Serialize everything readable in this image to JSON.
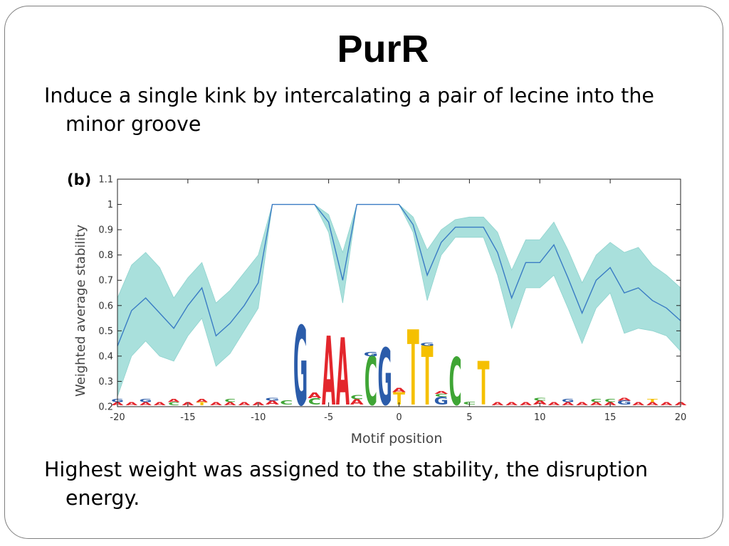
{
  "slide": {
    "title": "PurR",
    "bullets": [
      "Induce a single kink by intercalating a pair of lecine into the minor groove",
      "Highest weight was assigned to the stability, the disruption energy."
    ]
  },
  "colors": {
    "line": "#3a7cc4",
    "band": "#a9e0dc",
    "band_edge": "#8fd3ce",
    "logo_A": "#e3262c",
    "logo_C": "#3fa535",
    "logo_G": "#2b5caa",
    "logo_T": "#f5c000"
  },
  "chart_data": {
    "type": "line",
    "panel_label": "(b)",
    "xlabel": "Motif position",
    "ylabel": "Weighted average stability",
    "xlim": [
      -20,
      20
    ],
    "ylim": [
      0.2,
      1.1
    ],
    "xticks": [
      -20,
      -15,
      -10,
      -5,
      0,
      5,
      10,
      15,
      20
    ],
    "yticks": [
      0.2,
      0.3,
      0.4,
      0.5,
      0.6,
      0.7,
      0.8,
      0.9,
      1,
      1.1
    ],
    "grid": false,
    "series": [
      {
        "x": [
          -20,
          -19,
          -18,
          -17,
          -16,
          -15,
          -14,
          -13,
          -12,
          -11,
          -10,
          -9,
          -8,
          -7,
          -6,
          -5,
          -4,
          -3,
          -2,
          -1,
          0,
          1,
          2,
          3,
          4,
          5,
          6,
          7,
          8,
          9,
          10,
          11,
          12,
          13,
          14,
          15,
          16,
          17,
          18,
          19,
          20
        ],
        "values": [
          0.44,
          0.58,
          0.63,
          0.57,
          0.51,
          0.6,
          0.67,
          0.48,
          0.53,
          0.6,
          0.69,
          1.0,
          1.0,
          1.0,
          1.0,
          0.93,
          0.7,
          1.0,
          1.0,
          1.0,
          1.0,
          0.92,
          0.72,
          0.85,
          0.91,
          0.91,
          0.91,
          0.81,
          0.63,
          0.77,
          0.77,
          0.84,
          0.71,
          0.57,
          0.7,
          0.75,
          0.65,
          0.67,
          0.62,
          0.59,
          0.54
        ],
        "band_lower": [
          0.24,
          0.4,
          0.46,
          0.4,
          0.38,
          0.48,
          0.55,
          0.36,
          0.41,
          0.5,
          0.59,
          1.0,
          1.0,
          1.0,
          1.0,
          0.89,
          0.61,
          1.0,
          1.0,
          1.0,
          1.0,
          0.89,
          0.62,
          0.8,
          0.87,
          0.87,
          0.87,
          0.72,
          0.51,
          0.67,
          0.67,
          0.72,
          0.59,
          0.45,
          0.59,
          0.65,
          0.49,
          0.51,
          0.5,
          0.48,
          0.42
        ],
        "band_upper": [
          0.63,
          0.76,
          0.81,
          0.75,
          0.63,
          0.71,
          0.77,
          0.61,
          0.66,
          0.73,
          0.8,
          1.0,
          1.0,
          1.0,
          1.0,
          0.96,
          0.81,
          1.0,
          1.0,
          1.0,
          1.0,
          0.95,
          0.82,
          0.9,
          0.94,
          0.95,
          0.95,
          0.89,
          0.74,
          0.86,
          0.86,
          0.93,
          0.82,
          0.69,
          0.8,
          0.85,
          0.81,
          0.83,
          0.76,
          0.72,
          0.67
        ]
      }
    ],
    "logo_big": [
      {
        "pos": -7,
        "stack": [
          [
            "G",
            1.0
          ]
        ]
      },
      {
        "pos": -6,
        "stack": [
          [
            "C",
            0.08
          ],
          [
            "A",
            0.07
          ]
        ]
      },
      {
        "pos": -5,
        "stack": [
          [
            "A",
            0.87
          ]
        ]
      },
      {
        "pos": -4,
        "stack": [
          [
            "A",
            0.85
          ]
        ]
      },
      {
        "pos": -3,
        "stack": [
          [
            "A",
            0.07
          ],
          [
            "C",
            0.05
          ]
        ]
      },
      {
        "pos": -2,
        "stack": [
          [
            "C",
            0.62
          ],
          [
            "G",
            0.05
          ]
        ]
      },
      {
        "pos": -1,
        "stack": [
          [
            "G",
            0.72
          ]
        ]
      },
      {
        "pos": 0,
        "stack": [
          [
            "T",
            0.16
          ],
          [
            "A",
            0.05
          ]
        ]
      },
      {
        "pos": 1,
        "stack": [
          [
            "T",
            0.95
          ]
        ]
      },
      {
        "pos": 2,
        "stack": [
          [
            "T",
            0.75
          ],
          [
            "G",
            0.04
          ]
        ]
      },
      {
        "pos": 3,
        "stack": [
          [
            "G",
            0.1
          ],
          [
            "C",
            0.03
          ],
          [
            "A",
            0.03
          ]
        ]
      },
      {
        "pos": 4,
        "stack": [
          [
            "C",
            0.6
          ]
        ]
      },
      {
        "pos": 5,
        "stack": [
          [
            "C",
            0.03
          ]
        ]
      },
      {
        "pos": 6,
        "stack": [
          [
            "T",
            0.55
          ]
        ]
      },
      {
        "pos": -9,
        "stack": [
          [
            "A",
            0.05
          ],
          [
            "G",
            0.03
          ]
        ]
      },
      {
        "pos": -8,
        "stack": [
          [
            "C",
            0.05
          ]
        ]
      },
      {
        "pos": 10,
        "stack": [
          [
            "A",
            0.05
          ],
          [
            "C",
            0.03
          ]
        ]
      },
      {
        "pos": 16,
        "stack": [
          [
            "G",
            0.05
          ],
          [
            "A",
            0.03
          ]
        ]
      }
    ],
    "logo_small": [
      {
        "pos": -20,
        "stack": [
          "A",
          "G"
        ]
      },
      {
        "pos": -19,
        "stack": [
          "A"
        ]
      },
      {
        "pos": -18,
        "stack": [
          "A",
          "G"
        ]
      },
      {
        "pos": -17,
        "stack": [
          "A"
        ]
      },
      {
        "pos": -16,
        "stack": [
          "C",
          "A"
        ]
      },
      {
        "pos": -15,
        "stack": [
          "A"
        ]
      },
      {
        "pos": -14,
        "stack": [
          "T",
          "A"
        ]
      },
      {
        "pos": -13,
        "stack": [
          "A"
        ]
      },
      {
        "pos": -12,
        "stack": [
          "A",
          "C"
        ]
      },
      {
        "pos": -11,
        "stack": [
          "A"
        ]
      },
      {
        "pos": -10,
        "stack": [
          "A"
        ]
      },
      {
        "pos": 7,
        "stack": [
          "A"
        ]
      },
      {
        "pos": 8,
        "stack": [
          "A"
        ]
      },
      {
        "pos": 9,
        "stack": [
          "A"
        ]
      },
      {
        "pos": 11,
        "stack": [
          "A"
        ]
      },
      {
        "pos": 12,
        "stack": [
          "A",
          "G"
        ]
      },
      {
        "pos": 13,
        "stack": [
          "A"
        ]
      },
      {
        "pos": 14,
        "stack": [
          "A",
          "C"
        ]
      },
      {
        "pos": 15,
        "stack": [
          "A",
          "C"
        ]
      },
      {
        "pos": 17,
        "stack": [
          "A"
        ]
      },
      {
        "pos": 18,
        "stack": [
          "A",
          "T"
        ]
      },
      {
        "pos": 19,
        "stack": [
          "A"
        ]
      },
      {
        "pos": 20,
        "stack": [
          "A"
        ]
      }
    ]
  }
}
